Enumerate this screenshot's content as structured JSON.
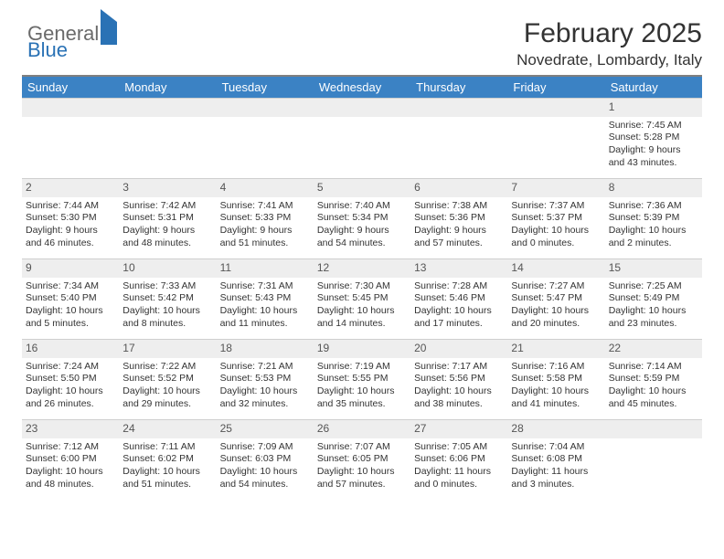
{
  "brand": {
    "general": "General",
    "blue": "Blue"
  },
  "title": "February 2025",
  "location": "Novedrate, Lombardy, Italy",
  "colors": {
    "header_bar": "#3b82c4",
    "daynum_bg": "#eeeeee",
    "rule": "#808080",
    "text": "#333333",
    "brand_blue": "#2a72b5",
    "brand_gray": "#6a6a6a"
  },
  "dow": [
    "Sunday",
    "Monday",
    "Tuesday",
    "Wednesday",
    "Thursday",
    "Friday",
    "Saturday"
  ],
  "weeks": [
    [
      {
        "n": "",
        "sr": "",
        "ss": "",
        "dl": ""
      },
      {
        "n": "",
        "sr": "",
        "ss": "",
        "dl": ""
      },
      {
        "n": "",
        "sr": "",
        "ss": "",
        "dl": ""
      },
      {
        "n": "",
        "sr": "",
        "ss": "",
        "dl": ""
      },
      {
        "n": "",
        "sr": "",
        "ss": "",
        "dl": ""
      },
      {
        "n": "",
        "sr": "",
        "ss": "",
        "dl": ""
      },
      {
        "n": "1",
        "sr": "Sunrise: 7:45 AM",
        "ss": "Sunset: 5:28 PM",
        "dl": "Daylight: 9 hours and 43 minutes."
      }
    ],
    [
      {
        "n": "2",
        "sr": "Sunrise: 7:44 AM",
        "ss": "Sunset: 5:30 PM",
        "dl": "Daylight: 9 hours and 46 minutes."
      },
      {
        "n": "3",
        "sr": "Sunrise: 7:42 AM",
        "ss": "Sunset: 5:31 PM",
        "dl": "Daylight: 9 hours and 48 minutes."
      },
      {
        "n": "4",
        "sr": "Sunrise: 7:41 AM",
        "ss": "Sunset: 5:33 PM",
        "dl": "Daylight: 9 hours and 51 minutes."
      },
      {
        "n": "5",
        "sr": "Sunrise: 7:40 AM",
        "ss": "Sunset: 5:34 PM",
        "dl": "Daylight: 9 hours and 54 minutes."
      },
      {
        "n": "6",
        "sr": "Sunrise: 7:38 AM",
        "ss": "Sunset: 5:36 PM",
        "dl": "Daylight: 9 hours and 57 minutes."
      },
      {
        "n": "7",
        "sr": "Sunrise: 7:37 AM",
        "ss": "Sunset: 5:37 PM",
        "dl": "Daylight: 10 hours and 0 minutes."
      },
      {
        "n": "8",
        "sr": "Sunrise: 7:36 AM",
        "ss": "Sunset: 5:39 PM",
        "dl": "Daylight: 10 hours and 2 minutes."
      }
    ],
    [
      {
        "n": "9",
        "sr": "Sunrise: 7:34 AM",
        "ss": "Sunset: 5:40 PM",
        "dl": "Daylight: 10 hours and 5 minutes."
      },
      {
        "n": "10",
        "sr": "Sunrise: 7:33 AM",
        "ss": "Sunset: 5:42 PM",
        "dl": "Daylight: 10 hours and 8 minutes."
      },
      {
        "n": "11",
        "sr": "Sunrise: 7:31 AM",
        "ss": "Sunset: 5:43 PM",
        "dl": "Daylight: 10 hours and 11 minutes."
      },
      {
        "n": "12",
        "sr": "Sunrise: 7:30 AM",
        "ss": "Sunset: 5:45 PM",
        "dl": "Daylight: 10 hours and 14 minutes."
      },
      {
        "n": "13",
        "sr": "Sunrise: 7:28 AM",
        "ss": "Sunset: 5:46 PM",
        "dl": "Daylight: 10 hours and 17 minutes."
      },
      {
        "n": "14",
        "sr": "Sunrise: 7:27 AM",
        "ss": "Sunset: 5:47 PM",
        "dl": "Daylight: 10 hours and 20 minutes."
      },
      {
        "n": "15",
        "sr": "Sunrise: 7:25 AM",
        "ss": "Sunset: 5:49 PM",
        "dl": "Daylight: 10 hours and 23 minutes."
      }
    ],
    [
      {
        "n": "16",
        "sr": "Sunrise: 7:24 AM",
        "ss": "Sunset: 5:50 PM",
        "dl": "Daylight: 10 hours and 26 minutes."
      },
      {
        "n": "17",
        "sr": "Sunrise: 7:22 AM",
        "ss": "Sunset: 5:52 PM",
        "dl": "Daylight: 10 hours and 29 minutes."
      },
      {
        "n": "18",
        "sr": "Sunrise: 7:21 AM",
        "ss": "Sunset: 5:53 PM",
        "dl": "Daylight: 10 hours and 32 minutes."
      },
      {
        "n": "19",
        "sr": "Sunrise: 7:19 AM",
        "ss": "Sunset: 5:55 PM",
        "dl": "Daylight: 10 hours and 35 minutes."
      },
      {
        "n": "20",
        "sr": "Sunrise: 7:17 AM",
        "ss": "Sunset: 5:56 PM",
        "dl": "Daylight: 10 hours and 38 minutes."
      },
      {
        "n": "21",
        "sr": "Sunrise: 7:16 AM",
        "ss": "Sunset: 5:58 PM",
        "dl": "Daylight: 10 hours and 41 minutes."
      },
      {
        "n": "22",
        "sr": "Sunrise: 7:14 AM",
        "ss": "Sunset: 5:59 PM",
        "dl": "Daylight: 10 hours and 45 minutes."
      }
    ],
    [
      {
        "n": "23",
        "sr": "Sunrise: 7:12 AM",
        "ss": "Sunset: 6:00 PM",
        "dl": "Daylight: 10 hours and 48 minutes."
      },
      {
        "n": "24",
        "sr": "Sunrise: 7:11 AM",
        "ss": "Sunset: 6:02 PM",
        "dl": "Daylight: 10 hours and 51 minutes."
      },
      {
        "n": "25",
        "sr": "Sunrise: 7:09 AM",
        "ss": "Sunset: 6:03 PM",
        "dl": "Daylight: 10 hours and 54 minutes."
      },
      {
        "n": "26",
        "sr": "Sunrise: 7:07 AM",
        "ss": "Sunset: 6:05 PM",
        "dl": "Daylight: 10 hours and 57 minutes."
      },
      {
        "n": "27",
        "sr": "Sunrise: 7:05 AM",
        "ss": "Sunset: 6:06 PM",
        "dl": "Daylight: 11 hours and 0 minutes."
      },
      {
        "n": "28",
        "sr": "Sunrise: 7:04 AM",
        "ss": "Sunset: 6:08 PM",
        "dl": "Daylight: 11 hours and 3 minutes."
      },
      {
        "n": "",
        "sr": "",
        "ss": "",
        "dl": ""
      }
    ]
  ]
}
